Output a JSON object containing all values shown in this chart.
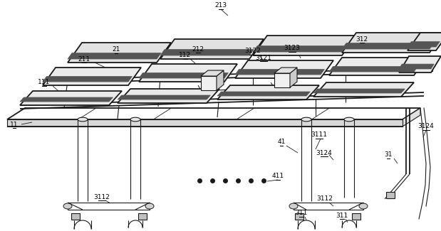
{
  "bg_color": "#ffffff",
  "lc": "#1a1a1a",
  "lw": 0.8,
  "lw2": 1.3,
  "panel_fc_light": "#e0e0e0",
  "panel_fc_mid": "#d0d0d0",
  "panel_fc_white": "#f5f5f5",
  "panel_stripe": "#606060",
  "box_fc": "#f0f0f0",
  "box_side": "#c8c8c8",
  "label_fs": 6.5
}
